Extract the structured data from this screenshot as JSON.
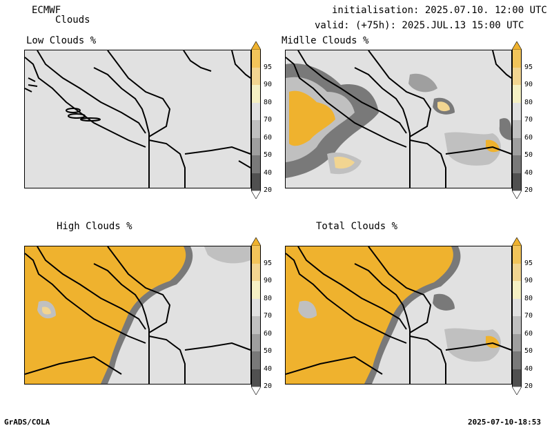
{
  "header": {
    "model": "ECMWF",
    "product": "Clouds",
    "init": "initialisation: 2025.07.10. 12:00 UTC",
    "valid": "valid: (+75h): 2025.JUL.13 15:00 UTC"
  },
  "panels": [
    {
      "title": "Low Clouds %"
    },
    {
      "title": "Midlle Clouds %"
    },
    {
      "title": "High Clouds %"
    },
    {
      "title": "Total Clouds %"
    }
  ],
  "colorbar": {
    "labels": [
      "95",
      "90",
      "80",
      "70",
      "60",
      "50",
      "40",
      "20"
    ],
    "colors": [
      "#efb22e",
      "#f2c45a",
      "#f2d591",
      "#f5f0c4",
      "#e1e1e1",
      "#c0c0c0",
      "#9f9f9f",
      "#797979",
      "#505050",
      "#ffffff"
    ]
  },
  "footer": {
    "left": "GrADS/COLA",
    "right": "2025-07-10-18:53"
  }
}
